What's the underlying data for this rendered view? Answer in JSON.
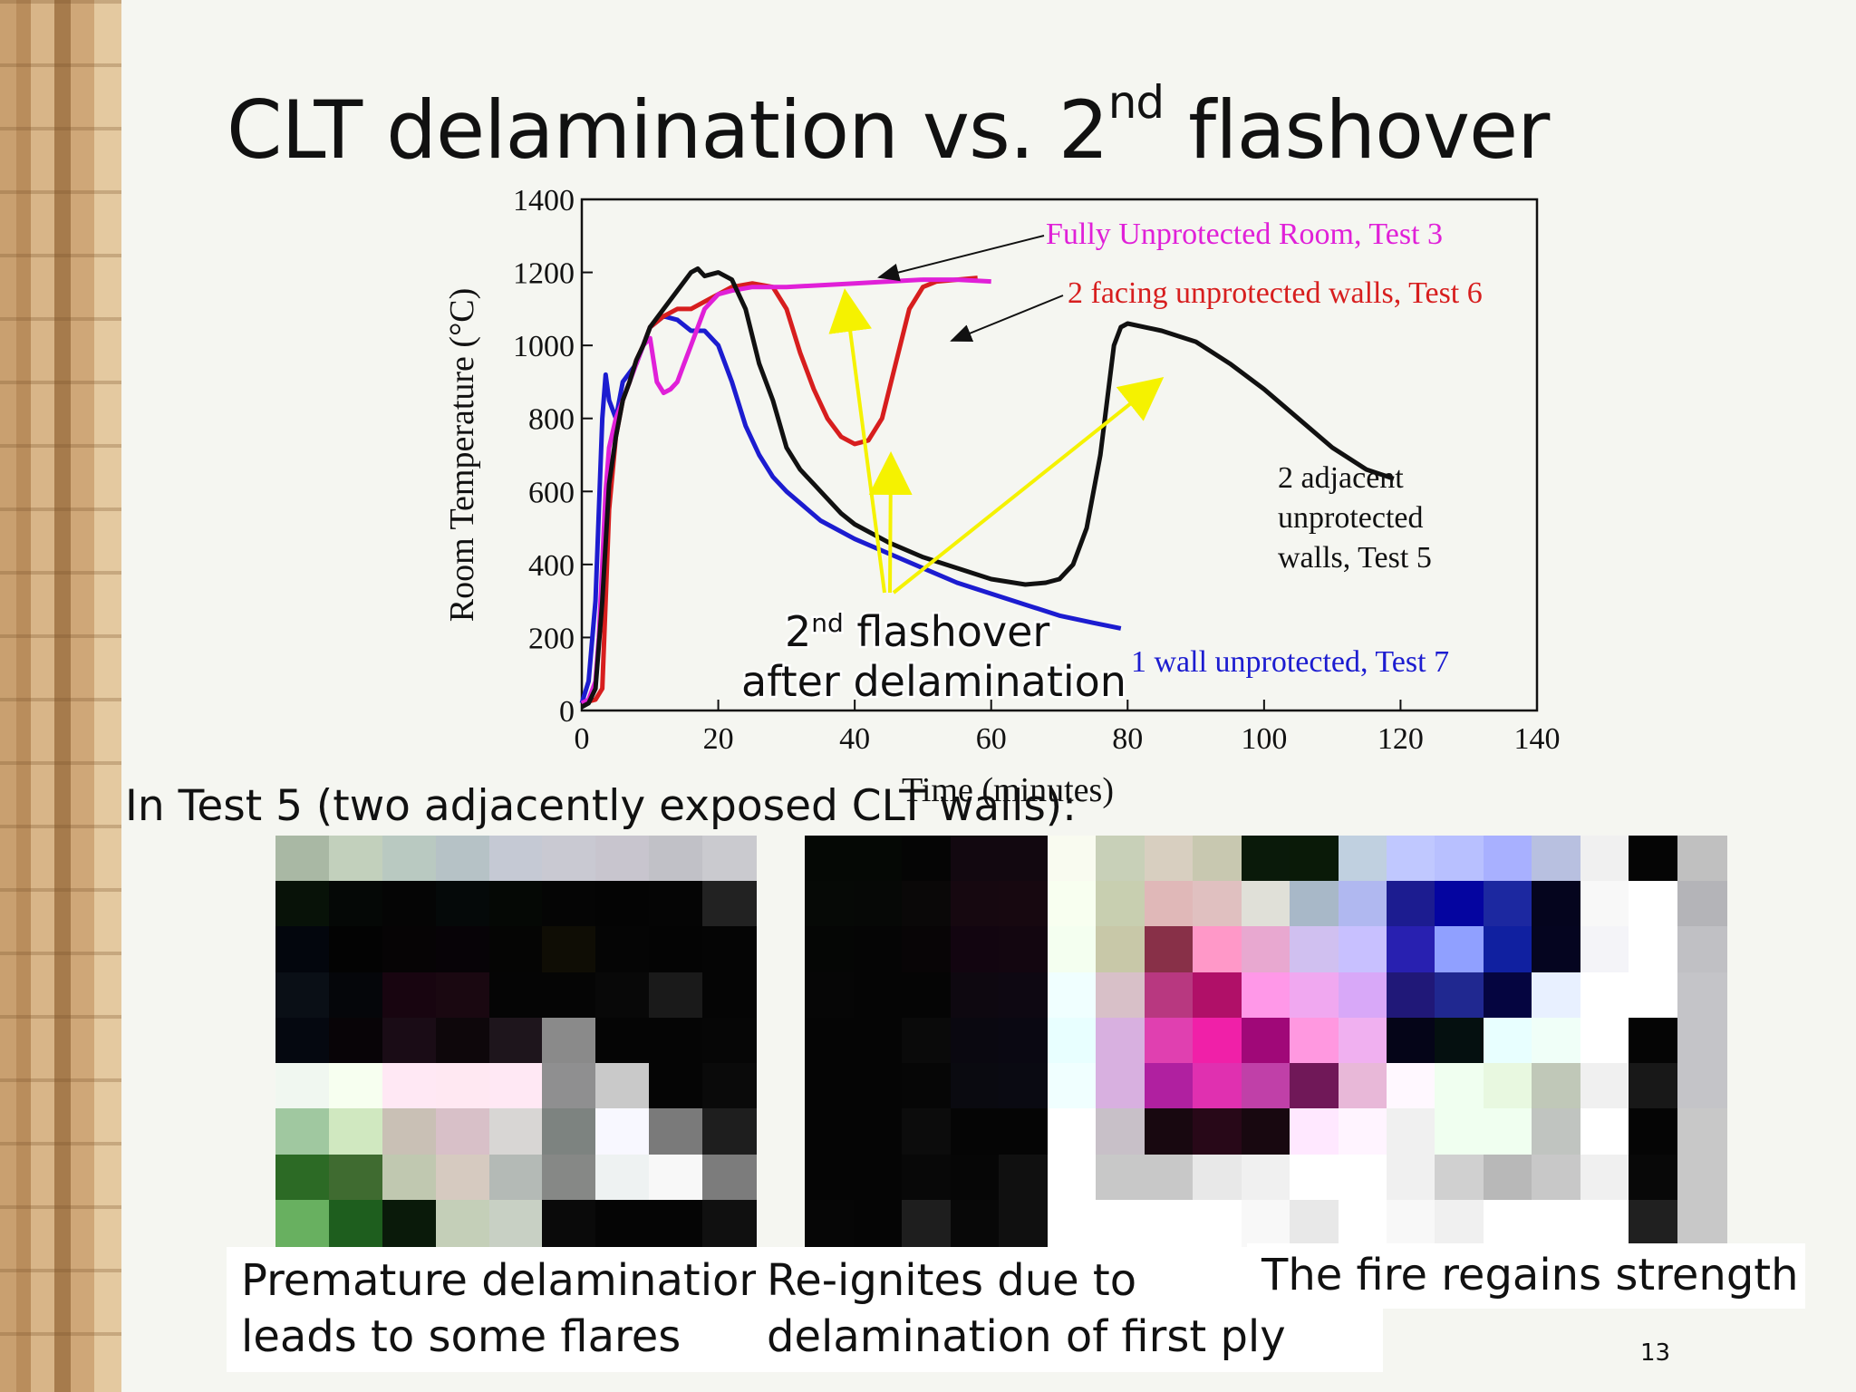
{
  "slide": {
    "title_main": "CLT delamination vs. 2",
    "title_sup": "nd",
    "title_end": " flashover",
    "test5_heading": "In Test 5 (two adjacently exposed CLT walls):",
    "captions": [
      {
        "line1": "Premature delamination",
        "line2": "leads to some flares"
      },
      {
        "line1": "Re-ignites due to",
        "line2": "delamination of first ply"
      },
      {
        "line1": "The fire regains strength",
        "line2": ""
      }
    ],
    "slide_number": "13"
  },
  "chart_data": {
    "type": "line",
    "xlabel": "Time (minutes)",
    "ylabel": "Room Temperature (°C)",
    "xlim": [
      0,
      140
    ],
    "ylim": [
      0,
      1400
    ],
    "xticks": [
      0,
      20,
      40,
      60,
      80,
      100,
      120,
      140
    ],
    "yticks": [
      0,
      200,
      400,
      600,
      800,
      1000,
      1200,
      1400
    ],
    "grid": false,
    "legend": "inline labels",
    "series": [
      {
        "name": "Fully Unprotected Room, Test 3",
        "color": "#e020d8",
        "x": [
          0,
          1,
          2,
          2.5,
          3,
          3.5,
          4,
          5,
          6,
          7,
          8,
          9,
          10,
          11,
          12,
          13,
          14,
          15,
          16,
          17,
          18,
          19,
          20,
          22,
          25,
          30,
          35,
          40,
          45,
          50,
          55,
          60
        ],
        "y": [
          20,
          30,
          80,
          200,
          400,
          600,
          720,
          800,
          850,
          900,
          950,
          1000,
          1020,
          900,
          870,
          880,
          900,
          950,
          1000,
          1050,
          1100,
          1120,
          1140,
          1150,
          1160,
          1160,
          1165,
          1170,
          1175,
          1180,
          1180,
          1175
        ]
      },
      {
        "name": "2 facing unprotected walls, Test 6",
        "color": "#d71e1e",
        "x": [
          0,
          2,
          3,
          3.5,
          4,
          5,
          6,
          7,
          8,
          9,
          10,
          12,
          14,
          16,
          18,
          20,
          22,
          25,
          28,
          30,
          32,
          34,
          36,
          38,
          40,
          42,
          44,
          46,
          48,
          50,
          52,
          55,
          58
        ],
        "y": [
          20,
          30,
          60,
          300,
          550,
          750,
          850,
          900,
          960,
          1000,
          1050,
          1080,
          1100,
          1100,
          1120,
          1140,
          1160,
          1170,
          1160,
          1100,
          980,
          880,
          800,
          750,
          730,
          740,
          800,
          950,
          1100,
          1160,
          1175,
          1180,
          1185
        ]
      },
      {
        "name": "2 adjacent unprotected walls, Test 5",
        "color": "#111111",
        "x": [
          0,
          1,
          2,
          3,
          4,
          5,
          6,
          7,
          8,
          9,
          10,
          12,
          14,
          16,
          17,
          18,
          20,
          22,
          24,
          26,
          28,
          30,
          32,
          34,
          36,
          38,
          40,
          45,
          50,
          55,
          60,
          65,
          68,
          70,
          72,
          74,
          76,
          77,
          78,
          79,
          80,
          85,
          90,
          95,
          100,
          105,
          110,
          115,
          119
        ],
        "y": [
          10,
          20,
          60,
          300,
          620,
          750,
          850,
          900,
          960,
          1000,
          1050,
          1100,
          1150,
          1200,
          1210,
          1190,
          1200,
          1180,
          1100,
          950,
          850,
          720,
          660,
          620,
          580,
          540,
          510,
          460,
          420,
          390,
          360,
          345,
          350,
          360,
          400,
          500,
          700,
          850,
          1000,
          1050,
          1060,
          1040,
          1010,
          950,
          880,
          800,
          720,
          660,
          635
        ]
      },
      {
        "name": "1 wall unprotected, Test 7",
        "color": "#1c1cd0",
        "x": [
          0,
          1,
          2,
          3,
          3.5,
          4,
          5,
          6,
          8,
          10,
          12,
          14,
          16,
          18,
          20,
          22,
          24,
          26,
          28,
          30,
          35,
          40,
          45,
          50,
          55,
          60,
          65,
          70,
          75,
          79
        ],
        "y": [
          20,
          80,
          300,
          800,
          920,
          850,
          800,
          900,
          950,
          1050,
          1080,
          1070,
          1040,
          1040,
          1000,
          900,
          780,
          700,
          640,
          600,
          520,
          470,
          430,
          390,
          350,
          320,
          290,
          260,
          240,
          225
        ]
      }
    ],
    "annotations": [
      {
        "text_parts": [
          "2",
          "nd",
          " flashover"
        ],
        "line2": "after delamination"
      },
      {
        "text_line1": "2 adjacent",
        "text_line2": "unprotected",
        "text_line3": "walls, Test 5"
      }
    ]
  },
  "photo_tiles": {
    "photo1": [
      [
        "#a9b8a4",
        "#c2d0bc",
        "#b9c9c1",
        "#b6c2c6",
        "#c5c9d4",
        "#c9c9d2",
        "#c8c5ce",
        "#c1c1c7",
        "#cacacf"
      ],
      [
        "#081208",
        "#050806",
        "#050505",
        "#050909",
        "#050805",
        "#050505",
        "#040404",
        "#050505",
        "#222222"
      ],
      [
        "#03060d",
        "#030303",
        "#060405",
        "#070307",
        "#050504",
        "#0f0d05",
        "#050505",
        "#040404",
        "#050505"
      ],
      [
        "#0a0f16",
        "#05060a",
        "#180510",
        "#1a0811",
        "#050505",
        "#050505",
        "#080808",
        "#1a1a1a",
        "#050505"
      ],
      [
        "#050810",
        "#080407",
        "#1a0c16",
        "#0e070b",
        "#1e151c",
        "#8a8a8a",
        "#050505",
        "#050505",
        "#060606"
      ],
      [
        "#f0f7f0",
        "#f7fff0",
        "#ffe8f4",
        "#ffe8f2",
        "#ffe8f4",
        "#8f8f90",
        "#c9c9c9",
        "#050505",
        "#0a0a0a"
      ],
      [
        "#a0c8a0",
        "#d0e8c0",
        "#c9c0b5",
        "#d8c0c8",
        "#d8d6d4",
        "#7d8380",
        "#f8f8ff",
        "#7a7a7a",
        "#1e1e1e"
      ],
      [
        "#2c6a25",
        "#3f6b30",
        "#c0c8b0",
        "#d6cac0",
        "#b4bab6",
        "#868886",
        "#eef2f2",
        "#f8f8f8",
        "#7c7c7c"
      ],
      [
        "#68b060",
        "#1e5e1e",
        "#0a1a0a",
        "#c4cfb8",
        "#c8d0c4",
        "#0a0a0a",
        "#050505",
        "#050505",
        "#101010"
      ]
    ],
    "photo2": [
      [
        "#050805",
        "#050805",
        "#050505",
        "#120810",
        "#120810"
      ],
      [
        "#060906",
        "#060806",
        "#0a0808",
        "#160810",
        "#170810"
      ],
      [
        "#050605",
        "#050505",
        "#080506",
        "#120510",
        "#130610"
      ],
      [
        "#060606",
        "#050505",
        "#050505",
        "#0e0810",
        "#0e0812"
      ],
      [
        "#050505",
        "#050505",
        "#0a0a0a",
        "#0a0810",
        "#0a0812"
      ],
      [
        "#050505",
        "#050505",
        "#060606",
        "#0a0a10",
        "#0a0a12"
      ],
      [
        "#050505",
        "#050505",
        "#0c0c0c",
        "#050505",
        "#050505"
      ],
      [
        "#050505",
        "#050505",
        "#080808",
        "#060606",
        "#101010"
      ],
      [
        "#060606",
        "#050505",
        "#1e1e1e",
        "#080808",
        "#101010"
      ]
    ],
    "photo3": [
      [
        "#f9fbf0",
        "#c8d0b8",
        "#d8cfc0",
        "#c8c8b0",
        "#0a1a0a",
        "#0a1a08",
        "#c0d0e0",
        "#c0c8ff",
        "#b8c0ff",
        "#a8b0ff",
        "#b8c0e0",
        "#f0f0f0",
        "#050505",
        "#c0c0c0"
      ],
      [
        "#f8fff0",
        "#c8cfb0",
        "#e0b8b8",
        "#e0c0c0",
        "#e0e0d8",
        "#a8b8c8",
        "#b0b8f0",
        "#1c1c90",
        "#0505a0",
        "#1c28a0",
        "#05051e",
        "#f8f8f8",
        "#ffffff",
        "#b4b4b8"
      ],
      [
        "#f4fff0",
        "#c8c8a8",
        "#883048",
        "#ff98c8",
        "#e8a8d0",
        "#d0c0f0",
        "#c8c0ff",
        "#2820b0",
        "#90a0ff",
        "#1020a0",
        "#050520",
        "#f4f4f8",
        "#ffffff",
        "#c0c0c4"
      ],
      [
        "#f0ffff",
        "#d8c0c8",
        "#b83880",
        "#b01068",
        "#ff98e8",
        "#f0a8f0",
        "#d8a8f8",
        "#201878",
        "#202890",
        "#050540",
        "#e8f0ff",
        "#ffffff",
        "#ffffff",
        "#c4c4c8"
      ],
      [
        "#e8ffff",
        "#d8b0e0",
        "#e040b0",
        "#f020a8",
        "#a00878",
        "#ff98e0",
        "#f0b0f0",
        "#050518",
        "#051010",
        "#e8ffff",
        "#f0fff8",
        "#ffffff",
        "#050505",
        "#c4c4c8"
      ],
      [
        "#f0ffff",
        "#d8b0e0",
        "#b020a0",
        "#e030b0",
        "#c040a8",
        "#701858",
        "#e8b8d8",
        "#fff8ff",
        "#f0fff0",
        "#e8f8e0",
        "#c0c8b8",
        "#f0f0f0",
        "#181818",
        "#c4c4c8"
      ],
      [
        "#ffffff",
        "#c8c0c8",
        "#180810",
        "#280818",
        "#180810",
        "#ffe8ff",
        "#fff4ff",
        "#f0f0f0",
        "#f0fff0",
        "#f0fff0",
        "#c0c4c0",
        "#ffffff",
        "#050505",
        "#c8c8c8"
      ],
      [
        "#ffffff",
        "#c8c8c8",
        "#c8c8c8",
        "#e8e8e8",
        "#f0f0f0",
        "#ffffff",
        "#ffffff",
        "#f0f0f0",
        "#d0d0d0",
        "#b8b8b8",
        "#c8c8c8",
        "#f0f0f0",
        "#080808",
        "#c8c8c8"
      ],
      [
        "#ffffff",
        "#ffffff",
        "#ffffff",
        "#ffffff",
        "#f8f8f8",
        "#e8e8e8",
        "#ffffff",
        "#f8f8f8",
        "#f0f0f0",
        "#ffffff",
        "#ffffff",
        "#ffffff",
        "#202020",
        "#c8c8c8"
      ]
    ]
  }
}
